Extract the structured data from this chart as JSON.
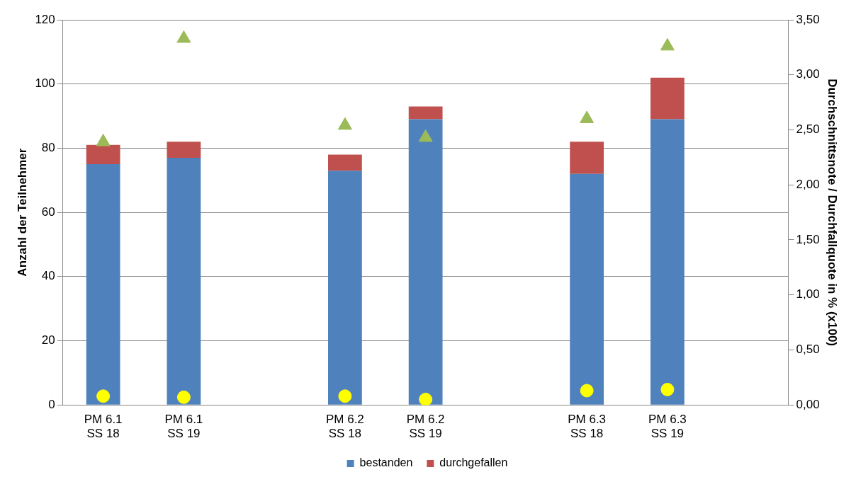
{
  "chart_data": {
    "type": "bar",
    "stacked": true,
    "categories": [
      "PM 6.1\nSS 18",
      "PM 6.1\nSS 19",
      null,
      "PM 6.2\nSS 18",
      "PM 6.2\nSS 19",
      null,
      "PM 6.3\nSS 18",
      "PM 6.3\nSS 19",
      null
    ],
    "series": [
      {
        "name": "bestanden",
        "color": "#4f81bd",
        "values": [
          75,
          77,
          null,
          73,
          89,
          null,
          72,
          89,
          null
        ]
      },
      {
        "name": "durchgefallen",
        "color": "#c0504d",
        "values": [
          6,
          5,
          null,
          5,
          4,
          null,
          10,
          13,
          null
        ]
      },
      {
        "type": "scatter",
        "axis": "y2",
        "marker": "triangle",
        "color": "#9bbb59",
        "values": [
          2.39,
          3.33,
          null,
          2.54,
          2.43,
          null,
          2.6,
          3.26,
          null
        ]
      },
      {
        "type": "scatter",
        "axis": "y2",
        "marker": "circle",
        "color": "#ffff00",
        "values": [
          0.08,
          0.07,
          null,
          0.08,
          0.05,
          null,
          0.13,
          0.14,
          null
        ]
      }
    ],
    "ylabel": "Anzahl der Teilnehmer",
    "y2label": "Durchschnittsnote / Durchfallquote in % (x100)",
    "ylim": [
      0,
      120
    ],
    "yticks": [
      0,
      20,
      40,
      60,
      80,
      100,
      120
    ],
    "y2lim": [
      0,
      3.5
    ],
    "y2ticks": [
      {
        "value": 0,
        "label": "0,00"
      },
      {
        "value": 0.5,
        "label": "0,50"
      },
      {
        "value": 1,
        "label": "1,00"
      },
      {
        "value": 1.5,
        "label": "1,50"
      },
      {
        "value": 2,
        "label": "2,00"
      },
      {
        "value": 2.5,
        "label": "2,50"
      },
      {
        "value": 3,
        "label": "3,00"
      },
      {
        "value": 3.5,
        "label": "3,50"
      }
    ],
    "grid": "y",
    "legend": "bottom"
  }
}
